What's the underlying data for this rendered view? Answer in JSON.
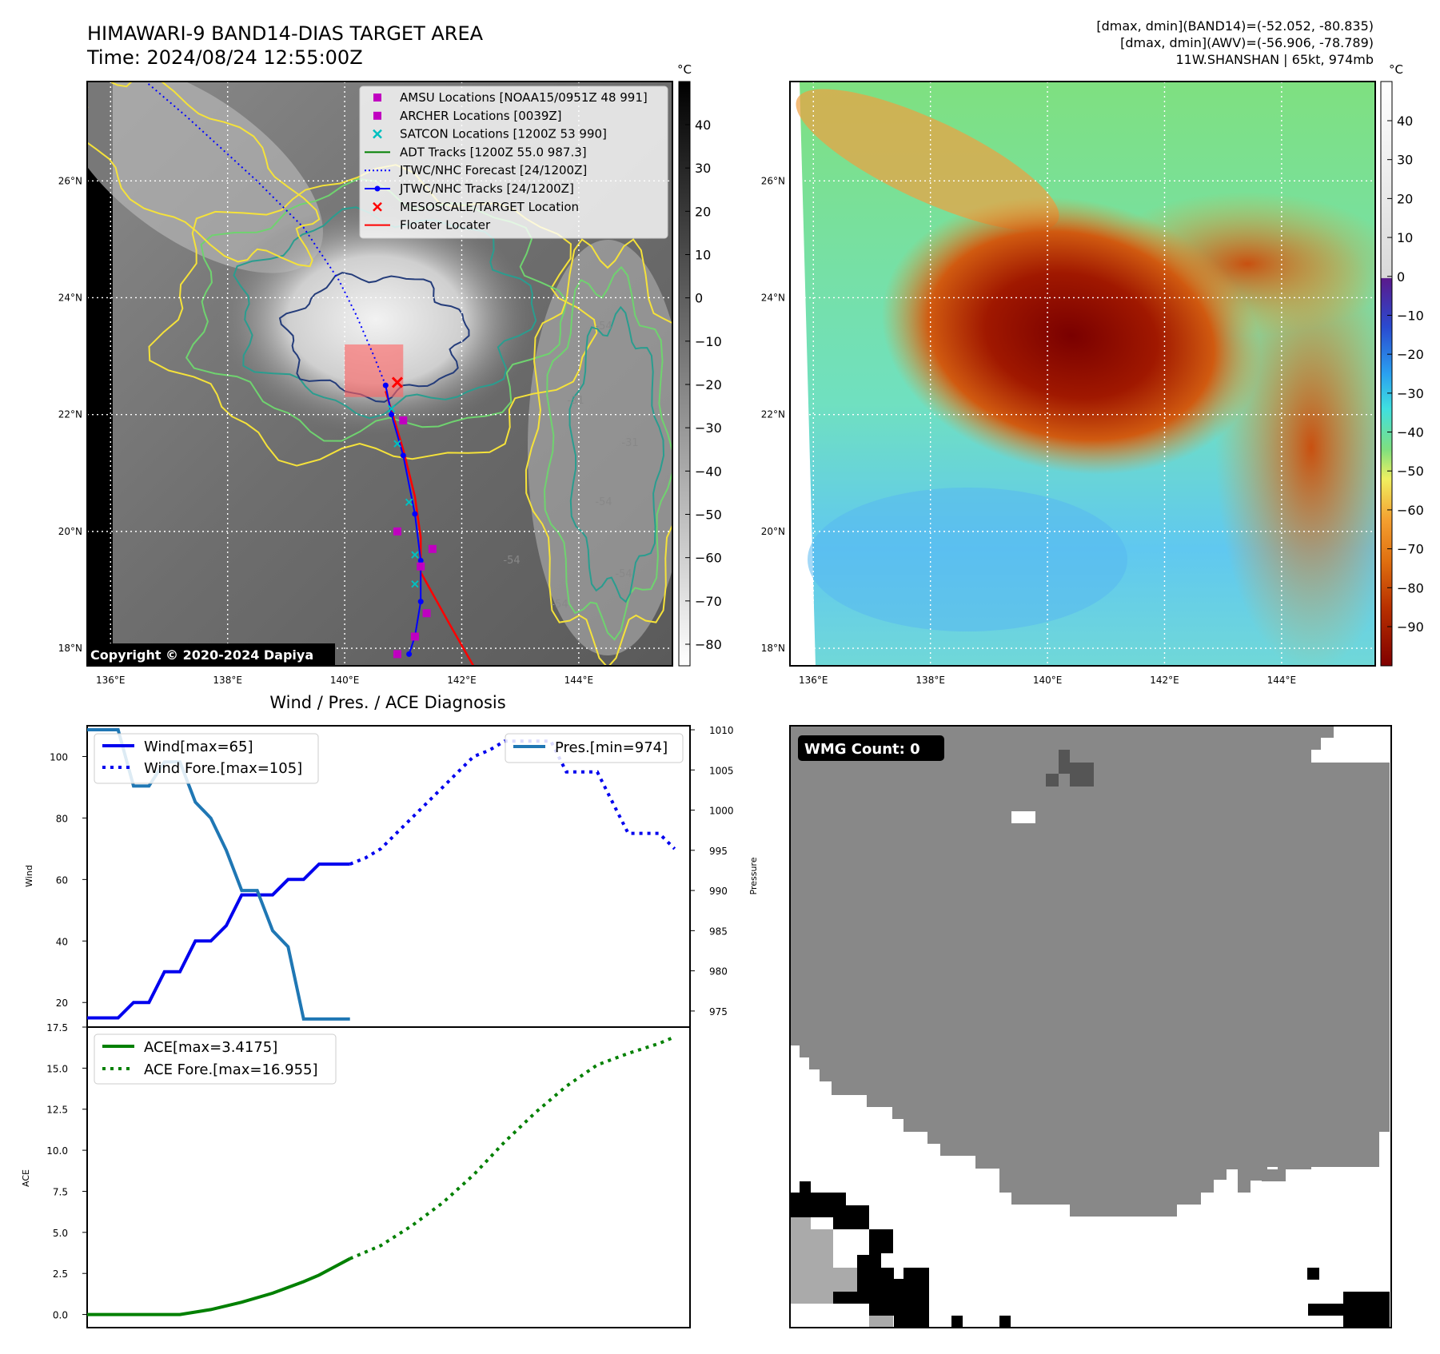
{
  "header": {
    "title_line1": "HIMAWARI-9 BAND14-DIAS TARGET AREA",
    "title_line2": "Time: 2024/08/24 12:55:00Z",
    "info_line1": "[dmax, dmin](BAND14)=(-52.052, -80.835)",
    "info_line2": "[dmax, dmin](AWV)=(-56.906, -78.789)",
    "info_line3": "11W.SHANSHAN | 65kt, 974mb"
  },
  "colors": {
    "wind": "#0000ee",
    "pressure": "#1f77b4",
    "ace": "#008000",
    "contour_yellow": "#f5e23a",
    "contour_green": "#6fd36f",
    "contour_teal": "#2a9d8f",
    "contour_navy": "#243c7a",
    "jtwc_track": "#0000ff",
    "floater": "#ff0000",
    "amsu": "#c000c0",
    "satcon": "#00c0c0",
    "adt": "#008000",
    "wmg_dark": "#555555",
    "wmg_mid": "#888888",
    "wmg_light": "#aaaaaa",
    "wmg_black": "#000000"
  },
  "map_panels": {
    "lon_ticks": [
      "136°E",
      "138°E",
      "140°E",
      "142°E",
      "144°E"
    ],
    "lat_ticks": [
      "26°N",
      "24°N",
      "22°N",
      "20°N",
      "18°N"
    ],
    "lon_values": [
      136,
      138,
      140,
      142,
      144
    ],
    "lat_values": [
      26,
      24,
      22,
      20,
      18
    ],
    "lon_range": [
      135.6,
      145.6
    ],
    "lat_range": [
      17.7,
      27.7
    ],
    "colorbar_unit": "°C",
    "left_colorbar_ticks": [
      "40",
      "30",
      "20",
      "10",
      "0",
      "−10",
      "−20",
      "−30",
      "−40",
      "−50",
      "−60",
      "−70",
      "−80"
    ],
    "right_colorbar_ticks": [
      "40",
      "30",
      "20",
      "10",
      "0",
      "−10",
      "−20",
      "−30",
      "−40",
      "−50",
      "−60",
      "−70",
      "−80",
      "−90"
    ],
    "copyright": "Copyright © 2020-2024 Dapiya",
    "contour_labels": [
      "-54",
      "-54",
      "-54",
      "-31",
      "-54",
      "-31",
      "-54"
    ],
    "legend": [
      {
        "label": "AMSU Locations [NOAA15/0951Z 48 991]",
        "icon": "square-marker",
        "color": "#c000c0"
      },
      {
        "label": "ARCHER Locations [0039Z]",
        "icon": "square-marker",
        "color": "#c000c0"
      },
      {
        "label": "SATCON Locations [1200Z 53 990]",
        "icon": "x-marker",
        "color": "#00c0c0"
      },
      {
        "label": "ADT Tracks [1200Z 55.0 987.3]",
        "icon": "solid-line",
        "color": "#008000"
      },
      {
        "label": "JTWC/NHC Forecast [24/1200Z]",
        "icon": "dotted-line",
        "color": "#0000ff"
      },
      {
        "label": "JTWC/NHC Tracks [24/1200Z]",
        "icon": "line-dot",
        "color": "#0000ff"
      },
      {
        "label": "MESOSCALE/TARGET Location",
        "icon": "x-marker",
        "color": "#ff0000"
      },
      {
        "label": "Floater Locater",
        "icon": "solid-line",
        "color": "#ff0000"
      }
    ],
    "jtwc_track": [
      [
        141.1,
        17.9
      ],
      [
        141.2,
        18.2
      ],
      [
        141.3,
        18.8
      ],
      [
        141.3,
        19.5
      ],
      [
        141.2,
        20.3
      ],
      [
        141.0,
        21.3
      ],
      [
        140.8,
        22.0
      ],
      [
        140.7,
        22.5
      ]
    ],
    "jtwc_forecast": [
      [
        140.7,
        22.5
      ],
      [
        140.5,
        23.0
      ],
      [
        140.2,
        23.7
      ],
      [
        139.9,
        24.3
      ],
      [
        139.3,
        25.2
      ],
      [
        138.5,
        26.0
      ],
      [
        137.3,
        27.1
      ],
      [
        136.6,
        27.7
      ]
    ],
    "floater_track": [
      [
        142.2,
        17.7
      ],
      [
        141.8,
        18.4
      ],
      [
        141.3,
        19.3
      ],
      [
        141.3,
        19.9
      ],
      [
        141.2,
        20.6
      ],
      [
        141.0,
        21.4
      ],
      [
        140.7,
        22.4
      ]
    ],
    "target_location": [
      140.9,
      22.55
    ],
    "target_box": {
      "lon": [
        140.0,
        141.0
      ],
      "lat": [
        22.3,
        23.2
      ]
    },
    "amsu_points": [
      [
        141.0,
        21.9
      ],
      [
        140.9,
        20.0
      ],
      [
        141.5,
        19.7
      ],
      [
        141.3,
        19.4
      ],
      [
        141.4,
        18.6
      ],
      [
        141.2,
        18.2
      ],
      [
        140.9,
        17.9
      ]
    ],
    "satcon_points": [
      [
        140.8,
        22.1
      ],
      [
        140.9,
        21.5
      ],
      [
        141.1,
        20.5
      ],
      [
        141.2,
        19.6
      ],
      [
        141.2,
        19.1
      ]
    ]
  },
  "chart_data": [
    {
      "type": "line",
      "title": "Wind / Pres. / ACE Diagnosis",
      "ylabel": "Wind",
      "ylabel_right": "Pressure",
      "x_range": [
        0,
        39
      ],
      "ylim": [
        12,
        110
      ],
      "ylim_right": [
        973,
        1010.5
      ],
      "yticks": [
        20,
        40,
        60,
        80,
        100
      ],
      "yticks_right": [
        975,
        980,
        985,
        990,
        995,
        1000,
        1005,
        1010
      ],
      "series": [
        {
          "name": "Wind[max=65]",
          "style": "solid",
          "axis": "left",
          "x": [
            0,
            2,
            3,
            4,
            5,
            6,
            7,
            8,
            9,
            10,
            11,
            12,
            13,
            14,
            15,
            16,
            17
          ],
          "values": [
            15,
            15,
            20,
            20,
            30,
            30,
            40,
            40,
            45,
            55,
            55,
            55,
            60,
            60,
            65,
            65,
            65
          ]
        },
        {
          "name": "Wind Fore.[max=105]",
          "style": "dotted",
          "axis": "left",
          "x": [
            17,
            18,
            19,
            20,
            21,
            22,
            23,
            24,
            25,
            26,
            27,
            28,
            29,
            30,
            31,
            32,
            33,
            34,
            35,
            36,
            37,
            38
          ],
          "values": [
            65,
            67,
            70,
            75,
            80,
            85,
            90,
            95,
            100,
            102,
            105,
            105,
            105,
            105,
            95,
            95,
            95,
            85,
            75,
            75,
            75,
            70
          ]
        },
        {
          "name": "Pres.[min=974]",
          "style": "solid",
          "axis": "right",
          "x": [
            0,
            2,
            3,
            4,
            5,
            6,
            7,
            8,
            9,
            10,
            11,
            12,
            13,
            14,
            15,
            16,
            17
          ],
          "values": [
            1010,
            1010,
            1003,
            1003,
            1006,
            1006,
            1001,
            999,
            995,
            990,
            990,
            985,
            983,
            974,
            974,
            974,
            974
          ]
        }
      ]
    },
    {
      "type": "line",
      "ylabel": "ACE",
      "x_range": [
        0,
        39
      ],
      "ylim": [
        -0.8,
        17.5
      ],
      "yticks": [
        0.0,
        2.5,
        5.0,
        7.5,
        10.0,
        12.5,
        15.0,
        17.5
      ],
      "ytick_labels": [
        "0.0",
        "2.5",
        "5.0",
        "7.5",
        "10.0",
        "12.5",
        "15.0",
        "17.5"
      ],
      "series": [
        {
          "name": "ACE[max=3.4175]",
          "style": "solid",
          "x": [
            0,
            2,
            4,
            6,
            8,
            10,
            12,
            14,
            15,
            16,
            17
          ],
          "values": [
            0,
            0,
            0,
            0,
            0.3,
            0.75,
            1.3,
            2.0,
            2.4,
            2.9,
            3.4
          ]
        },
        {
          "name": "ACE Fore.[max=16.955]",
          "style": "dotted",
          "x": [
            17,
            19,
            21,
            23,
            25,
            27,
            29,
            31,
            33,
            35,
            37,
            38
          ],
          "values": [
            3.4,
            4.2,
            5.4,
            6.8,
            8.5,
            10.5,
            12.3,
            13.9,
            15.2,
            15.9,
            16.5,
            16.9
          ]
        }
      ]
    }
  ],
  "wmg_panel": {
    "label": "WMG Count: 0"
  }
}
